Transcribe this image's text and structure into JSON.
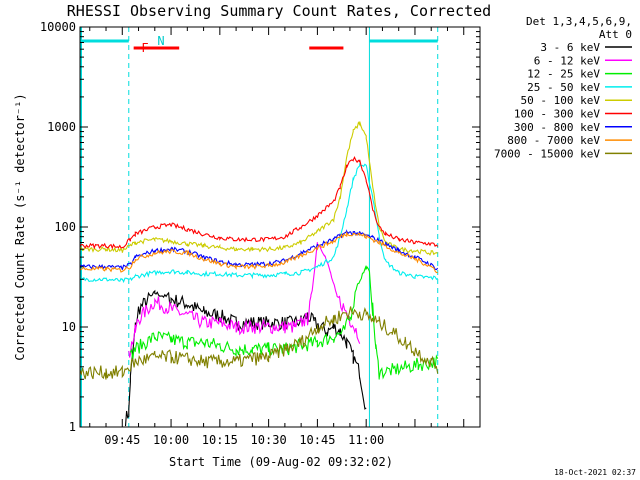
{
  "chart_data": {
    "type": "line",
    "title": "RHESSI Observing Summary Count Rates, Corrected",
    "xlabel": "Start Time (09-Aug-02 09:32:02)",
    "ylabel": "Corrected Count Rate (s⁻¹ detector⁻¹)",
    "yscale": "log",
    "ylim": [
      1,
      10000
    ],
    "yticks": [
      1,
      10,
      100,
      1000,
      10000
    ],
    "ytick_labels": [
      "1",
      "10",
      "100",
      "1000",
      "10000"
    ],
    "xlim": [
      -28,
      95
    ],
    "xtick_labels": [
      "09:45",
      "10:00",
      "10:15",
      "10:30",
      "10:45",
      "11:00"
    ],
    "xtick_values": [
      -15,
      0,
      15,
      30,
      45,
      60
    ],
    "legend_header": [
      "Det 1,3,4,5,6,9,",
      "Att 0"
    ],
    "legend_position": "right",
    "flag_labels": {
      "flare": "F",
      "night": "N"
    },
    "flags": {
      "flare_bars": [
        [
          -11.5,
          2.5
        ],
        [
          42.5,
          53
        ]
      ],
      "night_bars": [
        [
          -28,
          -13
        ],
        [
          61,
          82
        ]
      ],
      "night_lines": [
        -13,
        61,
        82
      ],
      "night_solid_line": 61,
      "left_boundary": -28
    },
    "footer": "18-Oct-2021 02:37",
    "series": [
      {
        "name": "3 - 6 keV",
        "color": "#000000",
        "x": [
          -28,
          -20,
          -15,
          -14,
          -13,
          -12.5,
          -11,
          -10,
          -5,
          0,
          5,
          10,
          15,
          20,
          25,
          30,
          35,
          38,
          40,
          42,
          44,
          46,
          48,
          50,
          52,
          54,
          56,
          58,
          60,
          62,
          65,
          68,
          70,
          75,
          80,
          82
        ],
        "y": [
          null,
          null,
          null,
          1.2,
          1.4,
          3,
          10,
          15,
          22,
          19,
          17,
          14,
          13,
          11,
          11,
          11,
          11,
          11,
          11.5,
          13,
          11,
          10,
          9,
          10,
          9,
          7,
          5,
          3.5,
          1.5,
          null,
          null,
          null,
          null,
          null,
          null,
          null
        ]
      },
      {
        "name": "6 - 12 keV",
        "color": "#ff00ff",
        "x": [
          -28,
          -20,
          -15,
          -13,
          -12.5,
          -11,
          -10,
          -5,
          0,
          5,
          10,
          15,
          20,
          25,
          30,
          35,
          38,
          40,
          41,
          42,
          43,
          45,
          47,
          49,
          51,
          53,
          55,
          58
        ],
        "y": [
          null,
          null,
          null,
          5,
          6,
          9,
          12,
          18,
          15,
          13,
          11,
          11,
          10,
          10,
          10,
          10,
          10,
          11,
          11.5,
          12,
          18,
          70,
          55,
          35,
          20,
          16,
          12,
          8
        ]
      },
      {
        "name": "12 - 25 keV",
        "color": "#00ee00",
        "x": [
          -28,
          -20,
          -15,
          -12.5,
          -11,
          -5,
          0,
          5,
          10,
          15,
          20,
          25,
          30,
          35,
          40,
          45,
          50,
          53,
          55,
          57,
          60,
          61,
          62,
          63,
          64,
          68,
          76,
          82
        ],
        "y": [
          null,
          null,
          null,
          5,
          6,
          8,
          7.5,
          7,
          7,
          6.5,
          6,
          6,
          6,
          6,
          6.5,
          7,
          8,
          9,
          12,
          25,
          40,
          35,
          15,
          6,
          3.5,
          3.7,
          4.2,
          4.5
        ]
      },
      {
        "name": "25 - 50 keV",
        "color": "#00eeee",
        "x": [
          -28,
          -20,
          -15,
          -12.5,
          -11,
          -5,
          0,
          5,
          10,
          15,
          20,
          25,
          30,
          35,
          40,
          45,
          50,
          52,
          54,
          56,
          58,
          60,
          62,
          64,
          66,
          70,
          75,
          80,
          82
        ],
        "y": [
          30,
          30,
          29,
          30,
          32,
          35,
          36,
          35,
          34,
          34,
          33,
          33,
          33,
          34,
          35,
          40,
          50,
          80,
          150,
          300,
          420,
          400,
          200,
          80,
          45,
          35,
          32,
          31,
          31
        ]
      },
      {
        "name": "50 - 100 keV",
        "color": "#cccc00",
        "x": [
          -28,
          -20,
          -15,
          -12.5,
          -11,
          -5,
          0,
          5,
          10,
          15,
          20,
          25,
          30,
          35,
          40,
          45,
          50,
          52,
          54,
          56,
          58,
          60,
          62,
          64,
          66,
          70,
          75,
          80,
          82
        ],
        "y": [
          60,
          60,
          58,
          65,
          70,
          75,
          72,
          68,
          65,
          62,
          60,
          60,
          60,
          62,
          70,
          90,
          120,
          200,
          500,
          900,
          1100,
          800,
          250,
          100,
          70,
          60,
          58,
          55,
          55
        ]
      },
      {
        "name": "100 - 300 keV",
        "color": "#ff0000",
        "x": [
          -28,
          -20,
          -15,
          -12.5,
          -11,
          -5,
          0,
          5,
          10,
          15,
          20,
          25,
          30,
          35,
          40,
          45,
          50,
          52,
          54,
          56,
          58,
          60,
          62,
          64,
          66,
          70,
          75,
          80,
          82
        ],
        "y": [
          65,
          65,
          63,
          75,
          85,
          100,
          105,
          95,
          85,
          78,
          75,
          75,
          75,
          80,
          100,
          130,
          180,
          250,
          400,
          480,
          460,
          300,
          150,
          100,
          85,
          75,
          70,
          68,
          65
        ]
      },
      {
        "name": "300 - 800 keV",
        "color": "#0000ff",
        "x": [
          -28,
          -20,
          -15,
          -12.5,
          -11,
          -5,
          0,
          5,
          10,
          15,
          20,
          25,
          30,
          35,
          40,
          45,
          50,
          52,
          54,
          56,
          58,
          60,
          62,
          64,
          66,
          70,
          75,
          80,
          82
        ],
        "y": [
          40,
          40,
          39,
          42,
          50,
          58,
          60,
          57,
          50,
          45,
          42,
          42,
          43,
          46,
          55,
          65,
          75,
          82,
          88,
          88,
          86,
          82,
          78,
          73,
          68,
          58,
          50,
          42,
          38
        ]
      },
      {
        "name": "800 - 7000 keV",
        "color": "#ff8c00",
        "x": [
          -28,
          -20,
          -15,
          -12.5,
          -11,
          -5,
          0,
          5,
          10,
          15,
          20,
          25,
          30,
          35,
          40,
          45,
          50,
          52,
          54,
          56,
          58,
          60,
          62,
          64,
          66,
          70,
          75,
          80,
          82
        ],
        "y": [
          38,
          38,
          37,
          40,
          48,
          55,
          57,
          55,
          48,
          43,
          40,
          40,
          41,
          44,
          52,
          62,
          72,
          80,
          85,
          86,
          84,
          80,
          75,
          70,
          65,
          55,
          48,
          40,
          36
        ]
      },
      {
        "name": "7000 - 15000 keV",
        "color": "#808000",
        "x": [
          -28,
          -20,
          -15,
          -12.5,
          -11,
          -5,
          0,
          5,
          10,
          15,
          20,
          25,
          30,
          35,
          40,
          45,
          50,
          54,
          58,
          60,
          62,
          64,
          68,
          72,
          76,
          80,
          82
        ],
        "y": [
          3.5,
          3.5,
          3.5,
          4,
          4.5,
          5,
          5,
          4.8,
          4.5,
          4.5,
          4.5,
          4.8,
          5,
          6,
          7,
          10,
          12,
          14,
          14,
          13,
          12,
          11,
          9,
          7,
          5.5,
          4.5,
          4
        ]
      }
    ]
  }
}
